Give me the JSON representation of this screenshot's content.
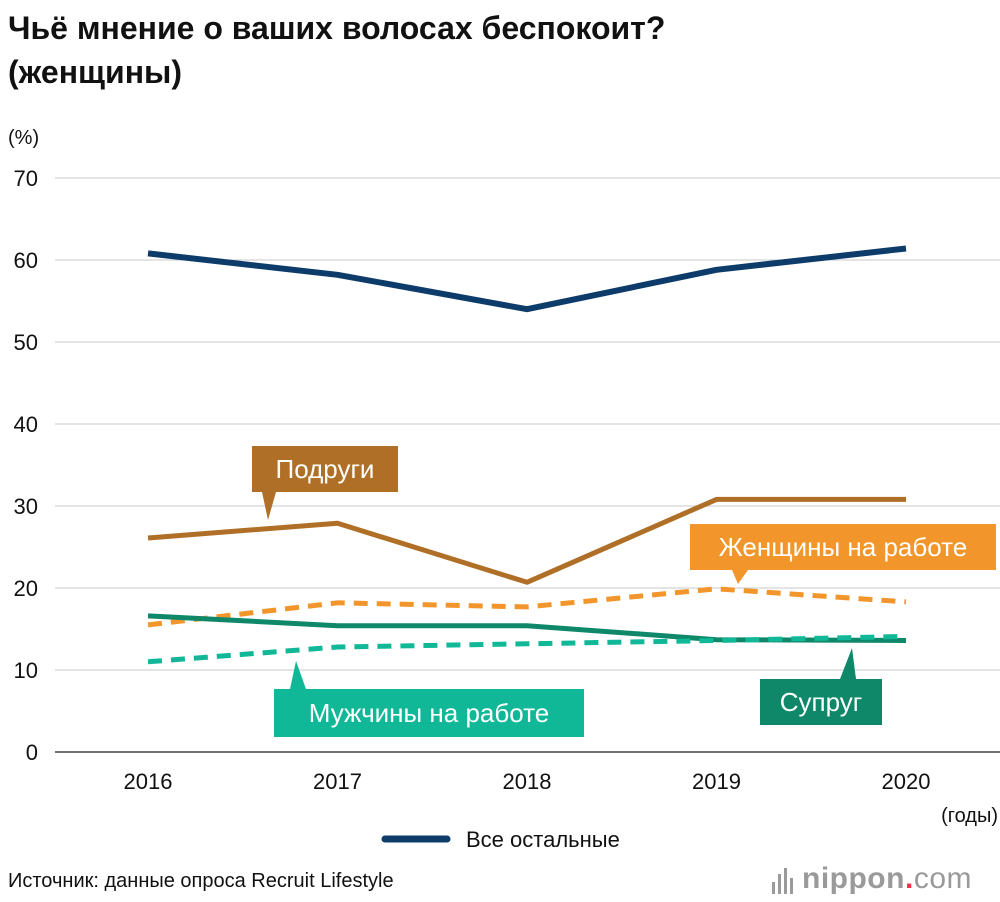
{
  "title": [
    "Чьё мнение о ваших волосах беспокоит?",
    "(женщины)"
  ],
  "source": "Источник: данные опроса Recruit Lifestyle",
  "brand": {
    "name": "nippon",
    "dot": ".",
    "tld": "com"
  },
  "colors": {
    "all_others": "#0d3c6a",
    "friends": "#b06f27",
    "women_at_work": "#f2962c",
    "men_at_work": "#11b897",
    "spouse": "#0e8869",
    "grid": "#c8c8c8",
    "axis": "#444444"
  },
  "chart_data": {
    "type": "line",
    "title": "Чьё мнение о ваших волосах беспокоит? (женщины)",
    "ylabel": "(%)",
    "xlabel": "(годы)",
    "x": [
      "2016",
      "2017",
      "2018",
      "2019",
      "2020"
    ],
    "ylim": [
      0,
      70
    ],
    "yticks": [
      "0",
      "10",
      "20",
      "30",
      "40",
      "50",
      "60",
      "70"
    ],
    "grid": true,
    "legend_position": "bottom",
    "series": [
      {
        "name": "Все остальные",
        "values": [
          60.8,
          58.2,
          54.0,
          58.8,
          61.4
        ],
        "style": "solid",
        "color_key": "all_others",
        "legend": true
      },
      {
        "name": "Подруги",
        "values": [
          26.1,
          27.9,
          20.7,
          30.8,
          30.8
        ],
        "style": "solid",
        "color_key": "friends",
        "label": true
      },
      {
        "name": "Женщины на работе",
        "values": [
          15.5,
          18.2,
          17.7,
          19.9,
          18.3
        ],
        "style": "dashed",
        "color_key": "women_at_work",
        "label": true
      },
      {
        "name": "Супруг",
        "values": [
          16.6,
          15.4,
          15.4,
          13.7,
          13.6
        ],
        "style": "solid",
        "color_key": "spouse",
        "label": true
      },
      {
        "name": "Мужчины на работе",
        "values": [
          11.0,
          12.8,
          13.2,
          13.6,
          14.1
        ],
        "style": "dashed",
        "color_key": "men_at_work",
        "label": true
      }
    ]
  }
}
